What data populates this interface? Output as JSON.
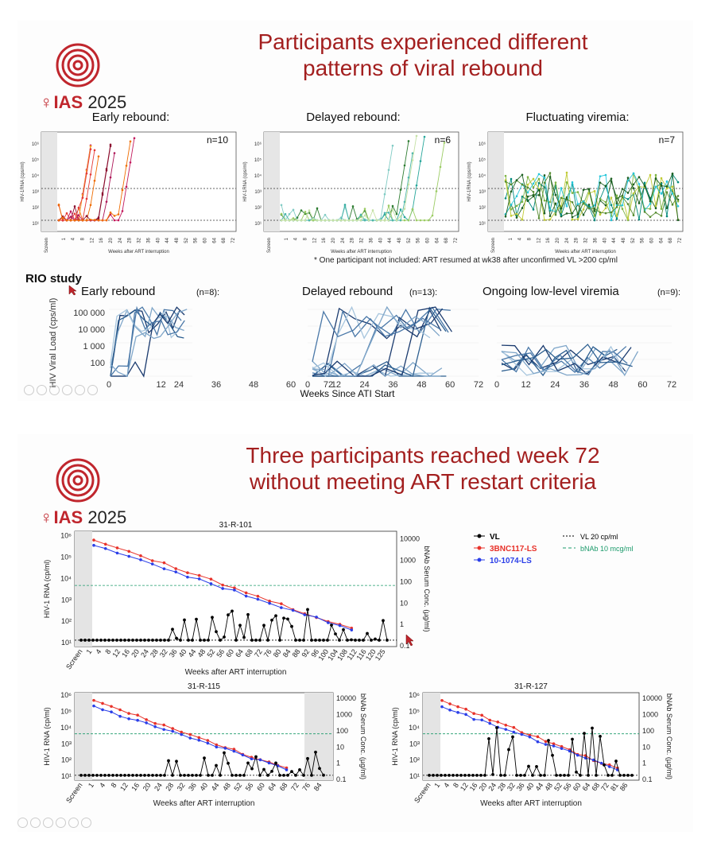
{
  "slide1": {
    "title_line1": "Participants experienced different",
    "title_line2": "patterns of viral rebound",
    "logo": {
      "brand": "IAS",
      "year": "2025"
    },
    "panels": [
      {
        "heading": "Early rebound:",
        "n": "n=10"
      },
      {
        "heading": "Delayed rebound:",
        "n": "n=6"
      },
      {
        "heading": "Fluctuating viremia:",
        "n": "n=7"
      }
    ],
    "ylabel": "HIV-1RNA (cps/ml)",
    "xlabel": "Weeks after ART interruption",
    "x_ticks": [
      "Screen",
      "1",
      "4",
      "8",
      "12",
      "16",
      "20",
      "24",
      "28",
      "32",
      "36",
      "40",
      "44",
      "48",
      "52",
      "56",
      "60",
      "64",
      "68",
      "72"
    ],
    "y_ticks": [
      "10¹",
      "10²",
      "10³",
      "10⁴",
      "10⁵",
      "10⁶"
    ],
    "footnote": "* One participant not included: ART resumed at wk38 after unconfirmed VL >200 cp/ml",
    "rio": {
      "label": "RIO study",
      "panels": [
        {
          "heading": "Early rebound",
          "n": "(n=8):"
        },
        {
          "heading": "Delayed rebound",
          "n": "(n=13):"
        },
        {
          "heading": "Ongoing low-level viremia",
          "n": "(n=9):"
        }
      ],
      "ylabel": "HIV Viral Load (cps/ml)",
      "y_ticks": [
        "100 000",
        "10 000",
        "1 000",
        "100"
      ],
      "x_ticks": [
        "0",
        "12",
        "24",
        "36",
        "48",
        "60",
        "72"
      ],
      "xlabel": "Weeks Since ATI Start"
    }
  },
  "slide2": {
    "title_line1": "Three participants reached week 72",
    "title_line2": "without meeting ART restart criteria",
    "logo": {
      "brand": "IAS",
      "year": "2025"
    },
    "legend": {
      "vl": "VL",
      "bnc": "3BNC117-LS",
      "ls1074": "10-1074-LS",
      "vl20": "VL 20 cp/ml",
      "bnab10": "bNAb 10 mcg/ml"
    },
    "ylabel_left": "HIV-1 RNA (cp/ml)",
    "ylabel_right": "bNAb Serum Conc. (µg/ml)",
    "xlabel": "Weeks after ART interruption",
    "y_ticks_left": [
      "10¹",
      "10²",
      "10³",
      "10⁴",
      "10⁵",
      "10⁶"
    ],
    "y_ticks_right": [
      "0.1",
      "1",
      "10",
      "100",
      "1000",
      "10000"
    ],
    "charts": [
      {
        "id": "31-R-101",
        "x_ticks": [
          "Screen",
          "1",
          "4",
          "8",
          "12",
          "16",
          "20",
          "24",
          "28",
          "32",
          "36",
          "40",
          "44",
          "48",
          "52",
          "56",
          "60",
          "64",
          "68",
          "72",
          "76",
          "80",
          "84",
          "88",
          "92",
          "96",
          "100",
          "104",
          "108",
          "112",
          "116",
          "120",
          "125"
        ]
      },
      {
        "id": "31-R-115",
        "x_ticks": [
          "Screen",
          "1",
          "4",
          "8",
          "12",
          "16",
          "20",
          "24",
          "28",
          "32",
          "36",
          "40",
          "44",
          "48",
          "52",
          "56",
          "60",
          "64",
          "68",
          "72",
          "76",
          "84"
        ]
      },
      {
        "id": "31-R-127",
        "x_ticks": [
          "Screen",
          "1",
          "4",
          "8",
          "12",
          "16",
          "20",
          "24",
          "28",
          "32",
          "36",
          "40",
          "44",
          "48",
          "52",
          "56",
          "60",
          "64",
          "68",
          "72",
          "81",
          "86"
        ]
      }
    ]
  },
  "colors": {
    "title": "#a31f1f",
    "vl": "#000000",
    "bnc": "#e8322a",
    "ls1074": "#2a3ee8",
    "bnab10": "#1a9a6a",
    "brand": "#c0262d"
  }
}
